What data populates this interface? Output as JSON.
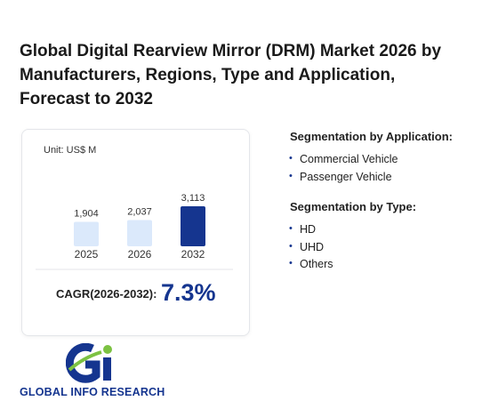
{
  "header": {
    "title": "Global Digital Rearview Mirror (DRM) Market 2026 by Manufacturers, Regions, Type and Application, Forecast to 2032"
  },
  "chart_data": {
    "type": "bar",
    "unit": "Unit: US$ M",
    "categories": [
      "2025",
      "2026",
      "2032"
    ],
    "values": [
      1904,
      2037,
      3113
    ],
    "value_labels": [
      "1,904",
      "2,037",
      "3,113"
    ],
    "colors": [
      "#dbe9fb",
      "#dbe9fb",
      "#15358f"
    ]
  },
  "cagr": {
    "label": "CAGR(2026-2032):",
    "value": "7.3%"
  },
  "segments": [
    {
      "title": "Segmentation by Application:",
      "items": [
        "Commercial Vehicle",
        "Passenger Vehicle"
      ]
    },
    {
      "title": "Segmentation by Type:",
      "items": [
        "HD",
        "UHD",
        "Others"
      ]
    }
  ],
  "logo": {
    "text": "GLOBAL INFO RESEARCH"
  }
}
